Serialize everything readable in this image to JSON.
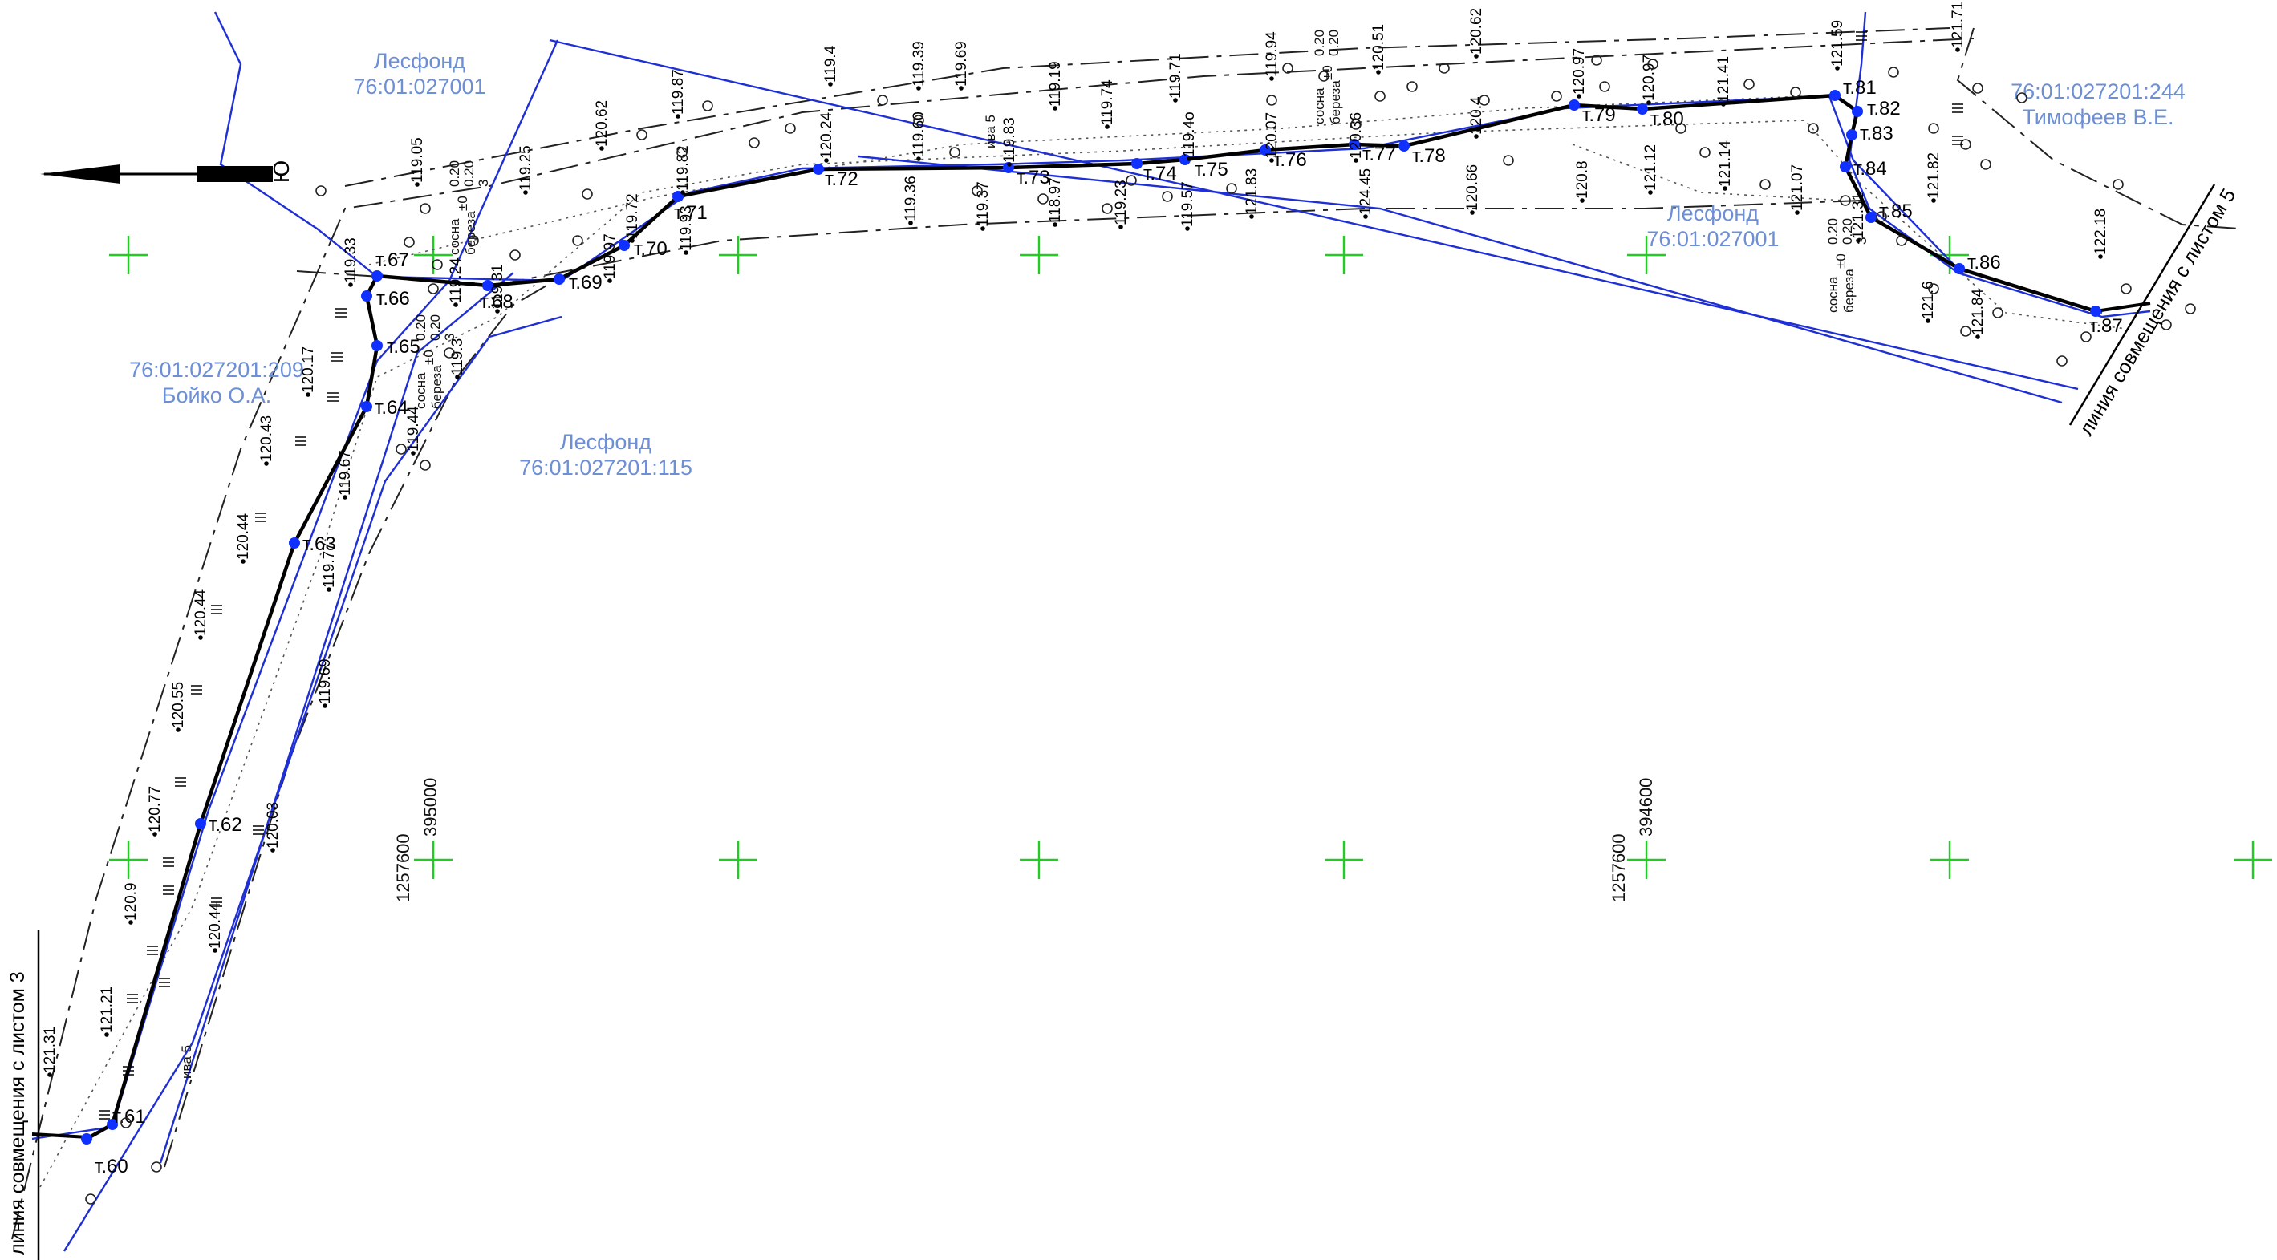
{
  "colors": {
    "route": "#000000",
    "boundary_blue": "#1f2fd6",
    "parcel_text": "#6d8fd6",
    "grid_cross": "#22cc22",
    "point": "#1030ff"
  },
  "north_arrow": {
    "label": "Ю"
  },
  "parcel_labels": [
    {
      "id": "lesfond-top",
      "lines": [
        "Лесфонд",
        "76:01:027001"
      ]
    },
    {
      "id": "lesfond-115",
      "lines": [
        "Лесфонд",
        "76:01:027201:115"
      ]
    },
    {
      "id": "boyko",
      "lines": [
        "76:01:027201:209",
        "Бойко О.А."
      ]
    },
    {
      "id": "lesfond-right",
      "lines": [
        "Лесфонд",
        "76:01:027001"
      ]
    },
    {
      "id": "timofeev",
      "lines": [
        "76:01:027201:244",
        "Тимофеев В.Е."
      ]
    }
  ],
  "match_lines": [
    {
      "id": "left",
      "text": "линия совмещения с листом 3"
    },
    {
      "id": "right",
      "text": "линия совмещения с листом 5"
    }
  ],
  "grid_coords": [
    {
      "id": "c1",
      "lines": [
        "1257600",
        "395000"
      ]
    },
    {
      "id": "c2",
      "lines": [
        "1257600",
        "394600"
      ]
    }
  ],
  "route_points": [
    {
      "id": "60",
      "label": "т.60"
    },
    {
      "id": "61",
      "label": "т.61"
    },
    {
      "id": "62",
      "label": "т.62"
    },
    {
      "id": "63",
      "label": "т.63"
    },
    {
      "id": "64",
      "label": "т.64"
    },
    {
      "id": "65",
      "label": "т.65"
    },
    {
      "id": "66",
      "label": "т.66"
    },
    {
      "id": "67",
      "label": "т.67"
    },
    {
      "id": "68",
      "label": "т.68"
    },
    {
      "id": "69",
      "label": "т.69"
    },
    {
      "id": "70",
      "label": "т.70"
    },
    {
      "id": "71",
      "label": "т.71"
    },
    {
      "id": "72",
      "label": "т.72"
    },
    {
      "id": "73",
      "label": "т.73"
    },
    {
      "id": "74",
      "label": "т.74"
    },
    {
      "id": "75",
      "label": "т.75"
    },
    {
      "id": "76",
      "label": "т.76"
    },
    {
      "id": "77",
      "label": "т.77"
    },
    {
      "id": "78",
      "label": "т.78"
    },
    {
      "id": "79",
      "label": "т.79"
    },
    {
      "id": "80",
      "label": "т.80"
    },
    {
      "id": "81",
      "label": "т.81"
    },
    {
      "id": "82",
      "label": "т.82"
    },
    {
      "id": "83",
      "label": "т.83"
    },
    {
      "id": "84",
      "label": "т.84"
    },
    {
      "id": "85",
      "label": "т.85"
    },
    {
      "id": "86",
      "label": "т.86"
    },
    {
      "id": "87",
      "label": "т.87"
    }
  ],
  "elevations": [
    "119.05",
    "119.25",
    "120.62",
    "119.87",
    "119.4",
    "119.39",
    "119.69",
    "119.19",
    "119.74",
    "119.71",
    "119.94",
    "120.51",
    "120.62",
    "120.97",
    "120.97",
    "121.41",
    "121.59",
    "121.71",
    "119.33",
    "119.24",
    "119.72",
    "119.82",
    "120.24",
    "119.60",
    "119.83",
    "119.4o",
    "120.07",
    "120.36",
    "120.4",
    "121.82",
    "121.12",
    "121.14",
    "120.8",
    "120.66",
    "121.07",
    "121.31",
    "121.6",
    "121.84",
    "122.18",
    "119.3",
    "119.44",
    "119.67",
    "119.31",
    "119.97",
    "119.36",
    "119.37",
    "118.97",
    "119.23",
    "119.57",
    "121.83",
    "124.45",
    "120.17",
    "120.43",
    "120.44",
    "120.44",
    "120.55",
    "120.77",
    "120.9",
    "121.21",
    "121.31",
    "119.69",
    "119.77",
    "120.03",
    "120.44",
    "119.93"
  ],
  "tree_notes": [
    {
      "id": "tn1",
      "lines": [
        "сосна",
        "береза"
      ],
      "sym": "±0",
      "vals": [
        "0.20",
        "0.20",
        "3"
      ]
    },
    {
      "id": "tn2",
      "lines": [
        "сосна",
        "береза"
      ],
      "sym": "±0",
      "vals": [
        "0.20",
        "0.20",
        "3"
      ]
    },
    {
      "id": "tn3",
      "lines": [
        "сосна",
        "береза"
      ],
      "sym": "±0",
      "vals": [
        "0.20",
        "0.20"
      ]
    },
    {
      "id": "tn4",
      "lines": [
        "сосна",
        "береза"
      ],
      "sym": "±0",
      "vals": [
        "0.20",
        "0.20",
        "3"
      ]
    }
  ],
  "veg_labels": [
    "ива 5",
    "ива 5"
  ]
}
